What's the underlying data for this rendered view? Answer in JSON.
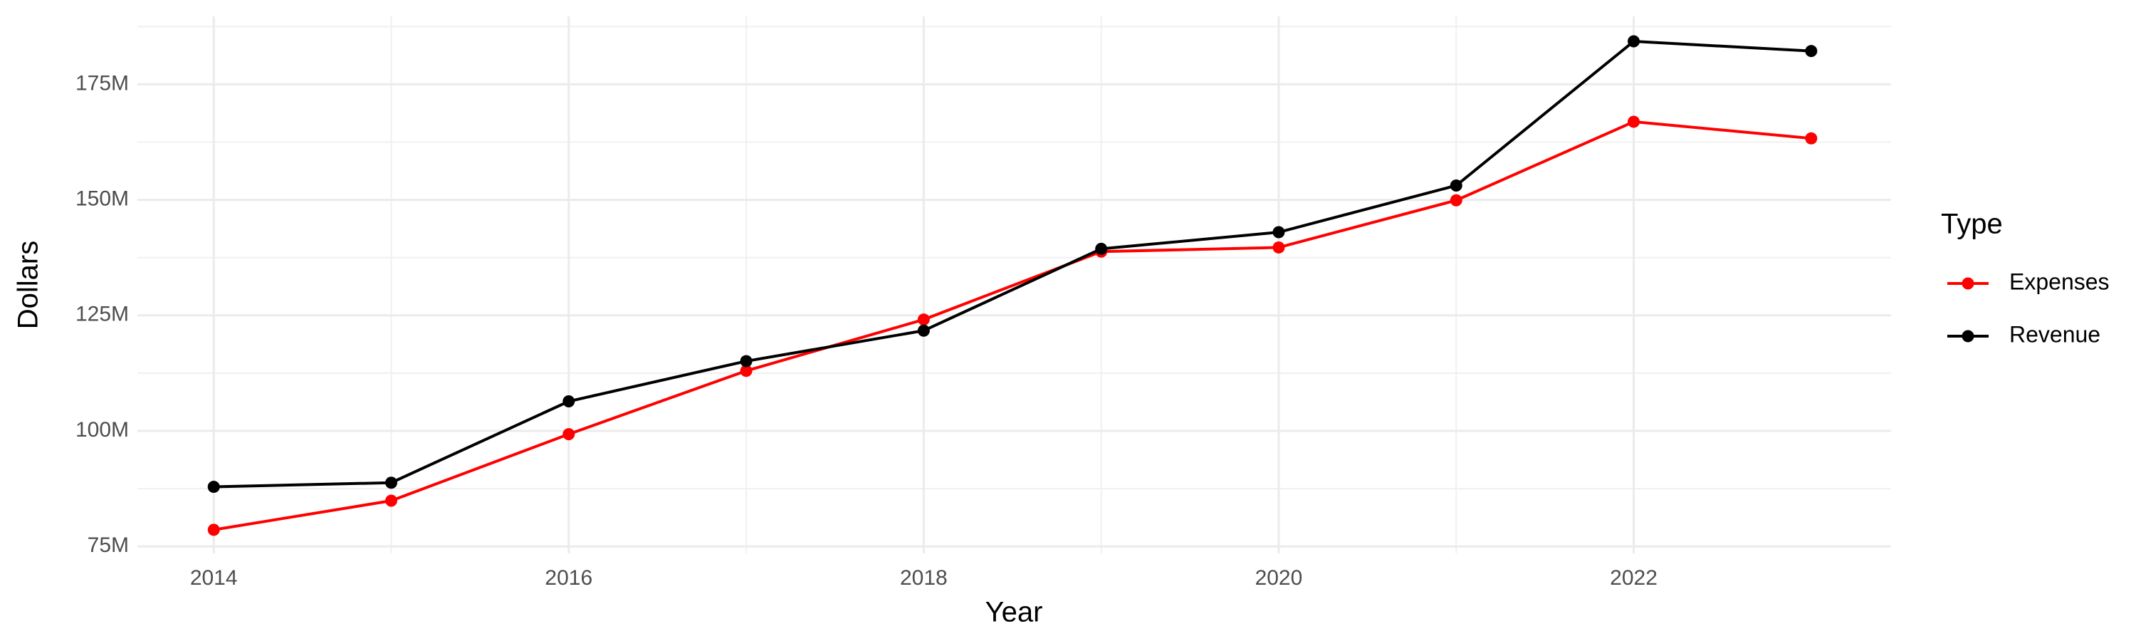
{
  "chart_data": {
    "type": "line",
    "x_label": "Year",
    "y_label": "Dollars",
    "legend_title": "Type",
    "x": [
      2014,
      2015,
      2016,
      2017,
      2018,
      2019,
      2020,
      2021,
      2022,
      2023
    ],
    "series": [
      {
        "name": "Expenses",
        "color": "#ff0000",
        "values": [
          78600000,
          84900000,
          99300000,
          113000000,
          124100000,
          138800000,
          139700000,
          149900000,
          166900000,
          163300000
        ]
      },
      {
        "name": "Revenue",
        "color": "#000000",
        "values": [
          87900000,
          88800000,
          106400000,
          115100000,
          121700000,
          139400000,
          143000000,
          153100000,
          184300000,
          182200000
        ]
      }
    ],
    "xlim": [
      2013.57,
      2023.45
    ],
    "xticks": [
      2014,
      2016,
      2018,
      2020,
      2022
    ],
    "ylim": [
      73500000,
      189700000
    ],
    "yticks": [
      {
        "value": 75000000,
        "label": "75M"
      },
      {
        "value": 100000000,
        "label": "100M"
      },
      {
        "value": 125000000,
        "label": "125M"
      },
      {
        "value": 150000000,
        "label": "150M"
      },
      {
        "value": 175000000,
        "label": "175M"
      }
    ],
    "grid": true,
    "legend_position": "right"
  }
}
